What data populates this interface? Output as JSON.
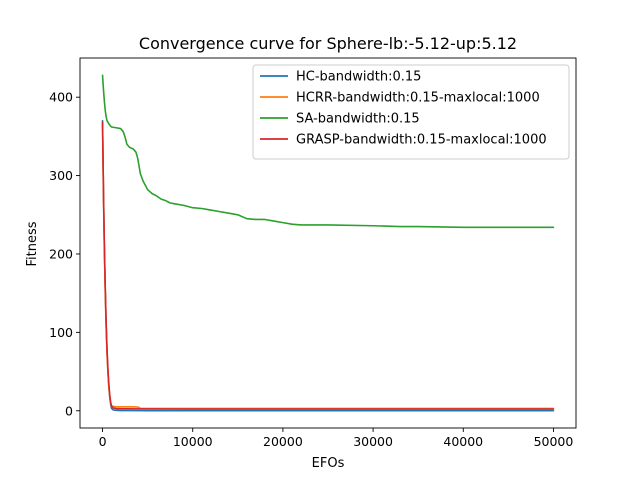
{
  "chart_data": {
    "type": "line",
    "title": "Convergence curve for Sphere-lb:-5.12-up:5.12",
    "xlabel": "EFOs",
    "ylabel": "Fitness",
    "xlim": [
      -2500,
      52500
    ],
    "ylim": [
      -22,
      450
    ],
    "x_ticks": [
      0,
      10000,
      20000,
      30000,
      40000,
      50000
    ],
    "x_tick_labels": [
      "0",
      "10000",
      "20000",
      "30000",
      "40000",
      "50000"
    ],
    "y_ticks": [
      0,
      100,
      200,
      300,
      400
    ],
    "y_tick_labels": [
      "0",
      "100",
      "200",
      "300",
      "400"
    ],
    "grid": false,
    "legend_position": "upper right",
    "series": [
      {
        "name": "HC-bandwidth:0.15",
        "color": "#1f77b4",
        "x": [
          0,
          100,
          200,
          300,
          400,
          500,
          600,
          700,
          800,
          900,
          1000,
          1200,
          1500,
          2000,
          3000,
          5000,
          10000,
          20000,
          30000,
          40000,
          50000
        ],
        "y": [
          370,
          280,
          210,
          155,
          110,
          75,
          50,
          30,
          17,
          8,
          3,
          1,
          0.5,
          0.3,
          0.2,
          0.1,
          0.1,
          0.1,
          0.1,
          0.1,
          0.1
        ]
      },
      {
        "name": "HCRR-bandwidth:0.15-maxlocal:1000",
        "color": "#ff7f0e",
        "x": [
          0,
          100,
          200,
          300,
          400,
          500,
          600,
          700,
          800,
          900,
          1000,
          1500,
          2000,
          3000,
          3500,
          4000,
          4200,
          10000,
          20000,
          30000,
          40000,
          50000
        ],
        "y": [
          365,
          275,
          205,
          150,
          105,
          72,
          48,
          30,
          18,
          10,
          6,
          5,
          5,
          5,
          5,
          4.5,
          3,
          3,
          3,
          3,
          3,
          3
        ]
      },
      {
        "name": "SA-bandwidth:0.15",
        "color": "#2ca02c",
        "x": [
          0,
          100,
          200,
          300,
          400,
          500,
          700,
          900,
          1000,
          1500,
          2000,
          2300,
          2500,
          2700,
          3000,
          3400,
          3700,
          3900,
          4200,
          4500,
          5000,
          5500,
          6000,
          6500,
          7000,
          7500,
          8000,
          9000,
          10000,
          11000,
          12000,
          13000,
          14000,
          15000,
          16000,
          17000,
          17500,
          18000,
          19000,
          20000,
          21000,
          22000,
          25000,
          30000,
          33000,
          35000,
          40000,
          45000,
          50000
        ],
        "y": [
          428,
          410,
          395,
          383,
          375,
          370,
          366,
          363,
          362,
          361,
          360,
          356,
          349,
          340,
          336,
          334,
          330,
          322,
          302,
          293,
          282,
          277,
          274,
          270,
          268,
          265,
          264,
          262,
          259,
          258,
          256,
          254,
          252,
          250,
          245,
          244,
          244,
          244,
          242,
          240,
          238,
          237,
          237,
          236,
          235,
          235,
          234,
          234,
          234
        ]
      },
      {
        "name": "GRASP-bandwidth:0.15-maxlocal:1000",
        "color": "#d62728",
        "x": [
          0,
          100,
          200,
          300,
          400,
          500,
          600,
          700,
          800,
          900,
          1000,
          1200,
          1500,
          2000,
          5000,
          10000,
          20000,
          30000,
          40000,
          50000
        ],
        "y": [
          368,
          282,
          212,
          158,
          112,
          78,
          52,
          34,
          20,
          11,
          6,
          3.5,
          2.8,
          2.5,
          2.3,
          2.2,
          2.2,
          2.2,
          2.2,
          2.2
        ]
      }
    ]
  }
}
